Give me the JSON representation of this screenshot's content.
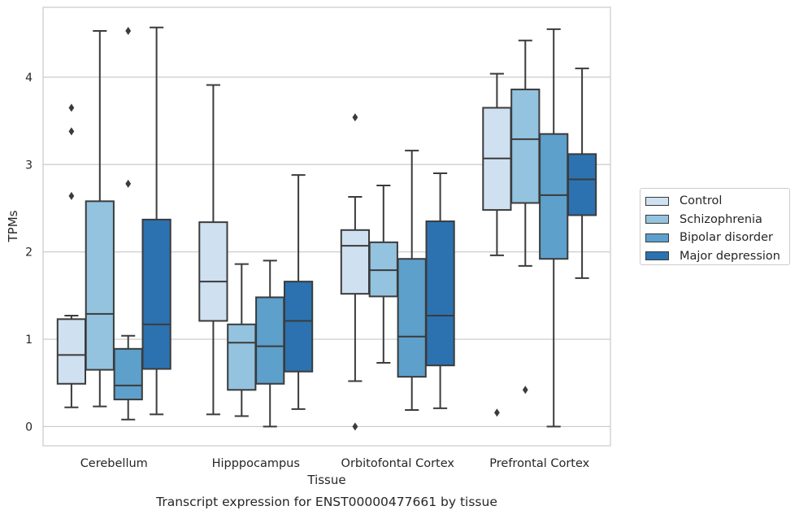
{
  "chart_data": {
    "type": "box",
    "xlabel": "Tissue",
    "ylabel": "TPMs",
    "caption": "Transcript expression for ENST00000477661 by tissue",
    "categories": [
      "Cerebellum",
      "Hipppocampus",
      "Orbitofontal Cortex",
      "Prefrontal Cortex"
    ],
    "yticks": [
      0,
      1,
      2,
      3,
      4
    ],
    "ylim": [
      -0.22,
      4.8
    ],
    "grid": "horizontal",
    "legend_position": "right",
    "series": [
      {
        "name": "Control",
        "color": "#cfe0f1",
        "boxes": [
          {
            "whislo": 0.22,
            "q1": 0.49,
            "med": 0.82,
            "q3": 1.23,
            "whishi": 1.27,
            "fliers": [
              2.64,
              3.38,
              3.65
            ]
          },
          {
            "whislo": 0.14,
            "q1": 1.21,
            "med": 1.66,
            "q3": 2.34,
            "whishi": 3.91,
            "fliers": []
          },
          {
            "whislo": 0.52,
            "q1": 1.52,
            "med": 2.07,
            "q3": 2.25,
            "whishi": 2.63,
            "fliers": [
              0.0,
              3.54
            ]
          },
          {
            "whislo": 1.96,
            "q1": 2.48,
            "med": 3.07,
            "q3": 3.65,
            "whishi": 4.04,
            "fliers": [
              0.16
            ]
          }
        ]
      },
      {
        "name": "Schizophrenia",
        "color": "#93c3df",
        "boxes": [
          {
            "whislo": 0.23,
            "q1": 0.65,
            "med": 1.29,
            "q3": 2.58,
            "whishi": 4.53,
            "fliers": []
          },
          {
            "whislo": 0.12,
            "q1": 0.42,
            "med": 0.96,
            "q3": 1.17,
            "whishi": 1.86,
            "fliers": []
          },
          {
            "whislo": 0.73,
            "q1": 1.49,
            "med": 1.79,
            "q3": 2.11,
            "whishi": 2.76,
            "fliers": []
          },
          {
            "whislo": 1.84,
            "q1": 2.56,
            "med": 3.29,
            "q3": 3.86,
            "whishi": 4.42,
            "fliers": [
              0.42
            ]
          }
        ]
      },
      {
        "name": "Bipolar disorder",
        "color": "#5da0cb",
        "boxes": [
          {
            "whislo": 0.08,
            "q1": 0.31,
            "med": 0.47,
            "q3": 0.89,
            "whishi": 1.04,
            "fliers": [
              2.78,
              4.53
            ]
          },
          {
            "whislo": 0.0,
            "q1": 0.49,
            "med": 0.92,
            "q3": 1.48,
            "whishi": 1.9,
            "fliers": []
          },
          {
            "whislo": 0.19,
            "q1": 0.57,
            "med": 1.03,
            "q3": 1.92,
            "whishi": 3.16,
            "fliers": []
          },
          {
            "whislo": 0.0,
            "q1": 1.92,
            "med": 2.65,
            "q3": 3.35,
            "whishi": 4.55,
            "fliers": []
          }
        ]
      },
      {
        "name": "Major depression",
        "color": "#2c72b0",
        "boxes": [
          {
            "whislo": 0.14,
            "q1": 0.66,
            "med": 1.17,
            "q3": 2.37,
            "whishi": 4.57,
            "fliers": []
          },
          {
            "whislo": 0.2,
            "q1": 0.63,
            "med": 1.21,
            "q3": 1.66,
            "whishi": 2.88,
            "fliers": []
          },
          {
            "whislo": 0.21,
            "q1": 0.7,
            "med": 1.27,
            "q3": 2.35,
            "whishi": 2.9,
            "fliers": []
          },
          {
            "whislo": 1.7,
            "q1": 2.42,
            "med": 2.83,
            "q3": 3.12,
            "whishi": 4.1,
            "fliers": []
          }
        ]
      }
    ]
  }
}
